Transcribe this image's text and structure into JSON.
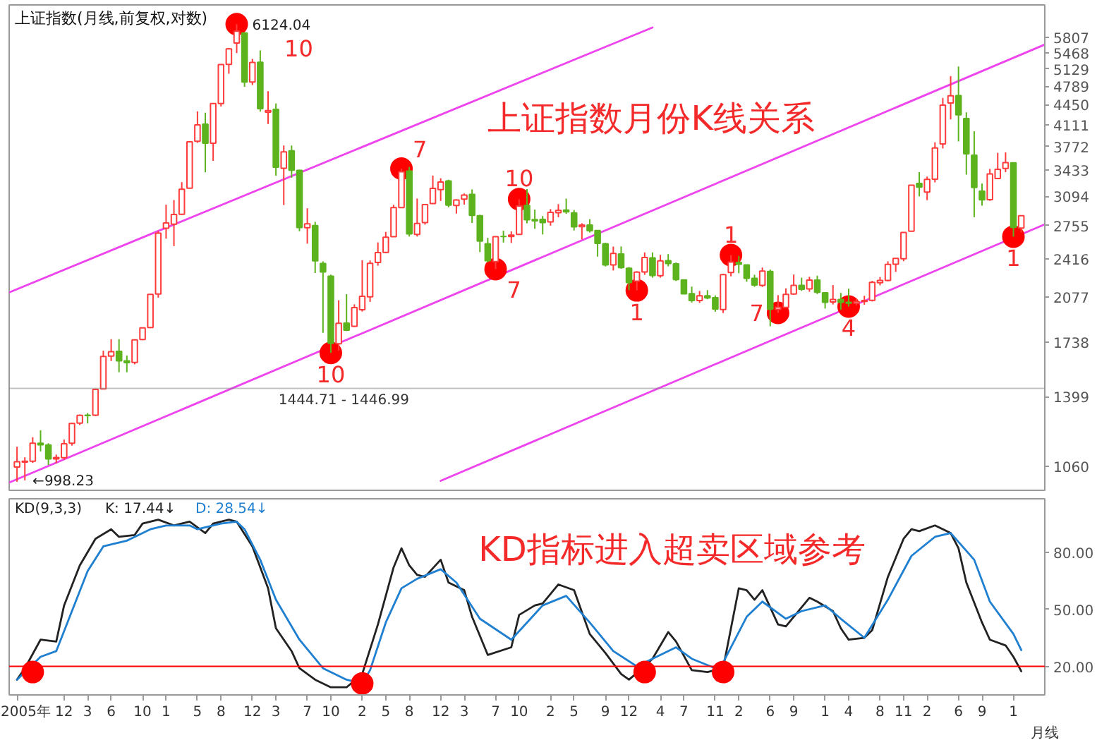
{
  "chart_data": [
    {
      "type": "candlestick",
      "title": "上证指数(月线,前复权,对数)",
      "x": [
        "2005-06",
        "2005-07",
        "2005-08",
        "2005-09",
        "2005-10",
        "2005-11",
        "2005-12",
        "2006-01",
        "2006-02",
        "2006-03",
        "2006-04",
        "2006-05",
        "2006-06",
        "2006-07",
        "2006-08",
        "2006-09",
        "2006-10",
        "2006-11",
        "2006-12",
        "2007-01",
        "2007-02",
        "2007-03",
        "2007-04",
        "2007-05",
        "2007-06",
        "2007-07",
        "2007-08",
        "2007-09",
        "2007-10",
        "2007-11",
        "2007-12",
        "2008-01",
        "2008-02",
        "2008-03",
        "2008-04",
        "2008-05",
        "2008-06",
        "2008-07",
        "2008-08",
        "2008-09",
        "2008-10",
        "2008-11",
        "2008-12",
        "2009-01",
        "2009-02",
        "2009-03",
        "2009-04",
        "2009-05",
        "2009-06",
        "2009-07",
        "2009-08",
        "2009-09",
        "2009-10",
        "2009-11",
        "2009-12",
        "2010-01",
        "2010-02",
        "2010-03",
        "2010-04",
        "2010-05",
        "2010-06",
        "2010-07",
        "2010-08",
        "2010-09",
        "2010-10",
        "2010-11",
        "2010-12",
        "2011-01",
        "2011-02",
        "2011-03",
        "2011-04",
        "2011-05",
        "2011-06",
        "2011-07",
        "2011-08",
        "2011-09",
        "2011-10",
        "2011-11",
        "2011-12",
        "2012-01",
        "2012-02",
        "2012-03",
        "2012-04",
        "2012-05",
        "2012-06",
        "2012-07",
        "2012-08",
        "2012-09",
        "2012-10",
        "2012-11",
        "2012-12",
        "2013-01",
        "2013-02",
        "2013-03",
        "2013-04",
        "2013-05",
        "2013-06",
        "2013-07",
        "2013-08",
        "2013-09",
        "2013-10",
        "2013-11",
        "2013-12",
        "2014-01",
        "2014-02",
        "2014-03",
        "2014-04",
        "2014-05",
        "2014-06",
        "2014-07",
        "2014-08",
        "2014-09",
        "2014-10",
        "2014-11",
        "2014-12",
        "2015-01",
        "2015-02",
        "2015-03",
        "2015-04",
        "2015-05",
        "2015-06",
        "2015-07",
        "2015-08",
        "2015-09",
        "2015-10",
        "2015-11",
        "2015-12",
        "2016-01",
        "2016-02"
      ],
      "ohlc": [
        [
          1058,
          1147,
          998.23,
          1081
        ],
        [
          1079,
          1100,
          1004,
          1083
        ],
        [
          1083,
          1191,
          1076,
          1163
        ],
        [
          1163,
          1224,
          1126,
          1156
        ],
        [
          1155,
          1163,
          1067,
          1093
        ],
        [
          1093,
          1112,
          1074,
          1099
        ],
        [
          1098,
          1180,
          1090,
          1161
        ],
        [
          1163,
          1262,
          1152,
          1258
        ],
        [
          1260,
          1303,
          1250,
          1299
        ],
        [
          1300,
          1311,
          1258,
          1298
        ],
        [
          1300,
          1445,
          1295,
          1440
        ],
        [
          1443,
          1678,
          1440,
          1641
        ],
        [
          1643,
          1757,
          1611,
          1672
        ],
        [
          1674,
          1757,
          1541,
          1612
        ],
        [
          1612,
          1647,
          1541,
          1601
        ],
        [
          1602,
          1752,
          1590,
          1752
        ],
        [
          1754,
          1837,
          1750,
          1837
        ],
        [
          1840,
          2100,
          1835,
          2099
        ],
        [
          2101,
          2698,
          2072,
          2675
        ],
        [
          2728,
          2994,
          2617,
          2786
        ],
        [
          2771,
          3050,
          2541,
          2881
        ],
        [
          2882,
          3274,
          2875,
          3183
        ],
        [
          3196,
          3842,
          3196,
          3841
        ],
        [
          3851,
          4335,
          3827,
          4109
        ],
        [
          4120,
          4312,
          3404,
          3820
        ],
        [
          3820,
          4476,
          3563,
          4471
        ],
        [
          4472,
          5218,
          4420,
          5218
        ],
        [
          5221,
          5576,
          5032,
          5552
        ],
        [
          5684,
          6124.04,
          5462,
          5954
        ],
        [
          5915,
          5916,
          4778,
          4871
        ],
        [
          4868,
          5337,
          4812,
          5262
        ],
        [
          5265,
          5522,
          4330,
          4383
        ],
        [
          4320,
          4696,
          4124,
          4348
        ],
        [
          4368,
          4473,
          3358,
          3473
        ],
        [
          3459,
          3786,
          2990,
          3693
        ],
        [
          3707,
          3786,
          3333,
          3433
        ],
        [
          3430,
          3439,
          2695,
          2736
        ],
        [
          2733,
          2952,
          2566,
          2775
        ],
        [
          2756,
          2798,
          2284,
          2397
        ],
        [
          2372,
          2392,
          1802,
          2293
        ],
        [
          2255,
          2269,
          1664,
          1729
        ],
        [
          1725,
          2050,
          1678,
          1871
        ],
        [
          1873,
          2100,
          1814,
          1821
        ],
        [
          1849,
          2017,
          1844,
          1991
        ],
        [
          1974,
          2402,
          1960,
          2082
        ],
        [
          2078,
          2400,
          2037,
          2373
        ],
        [
          2381,
          2579,
          2351,
          2477
        ],
        [
          2479,
          2688,
          2472,
          2632
        ],
        [
          2638,
          2993,
          2637,
          2959
        ],
        [
          2961,
          3455,
          2961,
          3412
        ],
        [
          3421,
          3478,
          2639,
          2667
        ],
        [
          2661,
          3068,
          2639,
          2779
        ],
        [
          2789,
          3004,
          2767,
          2995
        ],
        [
          3007,
          3361,
          3002,
          3195
        ],
        [
          3179,
          3325,
          3039,
          3277
        ],
        [
          3289,
          3306,
          2963,
          2989
        ],
        [
          2984,
          3059,
          2890,
          3051
        ],
        [
          3060,
          3130,
          2996,
          3110
        ],
        [
          3120,
          3181,
          2785,
          2870
        ],
        [
          2866,
          2876,
          2481,
          2592
        ],
        [
          2564,
          2625,
          2383,
          2398
        ],
        [
          2390,
          2642,
          2319,
          2638
        ],
        [
          2640,
          2701,
          2577,
          2639
        ],
        [
          2640,
          2694,
          2573,
          2655
        ],
        [
          2661,
          3060,
          2661,
          2979
        ],
        [
          2986,
          3186,
          2782,
          2820
        ],
        [
          2822,
          2936,
          2721,
          2808
        ],
        [
          2825,
          2862,
          2661,
          2790
        ],
        [
          2798,
          2942,
          2756,
          2905
        ],
        [
          2900,
          3001,
          2849,
          2928
        ],
        [
          2932,
          3067,
          2888,
          2911
        ],
        [
          2898,
          2932,
          2703,
          2743
        ],
        [
          2744,
          2782,
          2610,
          2762
        ],
        [
          2763,
          2827,
          2682,
          2701
        ],
        [
          2702,
          2702,
          2437,
          2568
        ],
        [
          2564,
          2575,
          2344,
          2359
        ],
        [
          2359,
          2536,
          2307,
          2468
        ],
        [
          2463,
          2537,
          2323,
          2333
        ],
        [
          2327,
          2338,
          2134,
          2199
        ],
        [
          2212,
          2300,
          2132,
          2292
        ],
        [
          2294,
          2478,
          2267,
          2428
        ],
        [
          2426,
          2478,
          2242,
          2262
        ],
        [
          2260,
          2454,
          2242,
          2396
        ],
        [
          2399,
          2461,
          2345,
          2372
        ],
        [
          2369,
          2381,
          2213,
          2225
        ],
        [
          2222,
          2223,
          2101,
          2103
        ],
        [
          2104,
          2164,
          2032,
          2047
        ],
        [
          2047,
          2127,
          2029,
          2086
        ],
        [
          2086,
          2134,
          2058,
          2069
        ],
        [
          2071,
          2090,
          1959,
          1980
        ],
        [
          1976,
          2276,
          1949,
          2269
        ],
        [
          2289,
          2452,
          2254,
          2385
        ],
        [
          2382,
          2444,
          2282,
          2365
        ],
        [
          2359,
          2359,
          2206,
          2236
        ],
        [
          2236,
          2268,
          2162,
          2178
        ],
        [
          2175,
          2334,
          2161,
          2301
        ],
        [
          2298,
          2315,
          1849,
          1979
        ],
        [
          1978,
          2092,
          1950,
          1994
        ],
        [
          1993,
          2149,
          1993,
          2098
        ],
        [
          2101,
          2270,
          2096,
          2175
        ],
        [
          2174,
          2242,
          2128,
          2141
        ],
        [
          2145,
          2250,
          2120,
          2221
        ],
        [
          2220,
          2260,
          2101,
          2116
        ],
        [
          2112,
          2113,
          1984,
          2033
        ],
        [
          2036,
          2177,
          2016,
          2056
        ],
        [
          2057,
          2111,
          1974,
          2033
        ],
        [
          2034,
          2146,
          2000,
          2026
        ],
        [
          2027,
          2062,
          2010,
          2039
        ],
        [
          2040,
          2087,
          2014,
          2048
        ],
        [
          2049,
          2214,
          2040,
          2201
        ],
        [
          2198,
          2248,
          2175,
          2217
        ],
        [
          2218,
          2392,
          2211,
          2364
        ],
        [
          2365,
          2421,
          2294,
          2420
        ],
        [
          2417,
          2683,
          2393,
          2683
        ],
        [
          2695,
          3239,
          2691,
          3234
        ],
        [
          3258,
          3406,
          3095,
          3210
        ],
        [
          3148,
          3347,
          3049,
          3310
        ],
        [
          3313,
          3835,
          3271,
          3748
        ],
        [
          3811,
          4572,
          3742,
          4442
        ],
        [
          4480,
          4986,
          4199,
          4612
        ],
        [
          4616,
          5178,
          3848,
          4277
        ],
        [
          4214,
          4318,
          3373,
          3664
        ],
        [
          3643,
          4006,
          2850,
          3206
        ],
        [
          3158,
          3256,
          2983,
          3053
        ],
        [
          3055,
          3450,
          3040,
          3383
        ],
        [
          3322,
          3678,
          3316,
          3445
        ],
        [
          3457,
          3684,
          3406,
          3539
        ],
        [
          3536,
          3539,
          2638,
          2738
        ],
        [
          2730,
          2870,
          2683,
          2867
        ]
      ],
      "colors": [
        "#ff3c3c",
        "#ff3c3c",
        "#ff3c3c",
        "#5cb31e",
        "#5cb31e",
        "#ff3c3c",
        "#ff3c3c",
        "#ff3c3c",
        "#ff3c3c",
        "#5cb31e",
        "#ff3c3c",
        "#ff3c3c",
        "#ff3c3c",
        "#5cb31e",
        "#5cb31e",
        "#ff3c3c",
        "#ff3c3c",
        "#ff3c3c",
        "#ff3c3c",
        "#ff3c3c",
        "#ff3c3c",
        "#ff3c3c",
        "#ff3c3c",
        "#ff3c3c",
        "#5cb31e",
        "#ff3c3c",
        "#ff3c3c",
        "#ff3c3c",
        "#ff3c3c",
        "#5cb31e",
        "#ff3c3c",
        "#5cb31e",
        "#ff3c3c",
        "#5cb31e",
        "#ff3c3c",
        "#5cb31e",
        "#5cb31e",
        "#ff3c3c",
        "#5cb31e",
        "#5cb31e",
        "#5cb31e",
        "#ff3c3c",
        "#5cb31e",
        "#ff3c3c",
        "#ff3c3c",
        "#ff3c3c",
        "#ff3c3c",
        "#ff3c3c",
        "#ff3c3c",
        "#ff3c3c",
        "#5cb31e",
        "#ff3c3c",
        "#ff3c3c",
        "#ff3c3c",
        "#ff3c3c",
        "#5cb31e",
        "#ff3c3c",
        "#ff3c3c",
        "#5cb31e",
        "#5cb31e",
        "#5cb31e",
        "#ff3c3c",
        "#5cb31e",
        "#ff3c3c",
        "#ff3c3c",
        "#5cb31e",
        "#5cb31e",
        "#5cb31e",
        "#ff3c3c",
        "#ff3c3c",
        "#5cb31e",
        "#5cb31e",
        "#ff3c3c",
        "#5cb31e",
        "#5cb31e",
        "#5cb31e",
        "#ff3c3c",
        "#5cb31e",
        "#5cb31e",
        "#ff3c3c",
        "#ff3c3c",
        "#5cb31e",
        "#ff3c3c",
        "#5cb31e",
        "#5cb31e",
        "#5cb31e",
        "#5cb31e",
        "#ff3c3c",
        "#5cb31e",
        "#5cb31e",
        "#ff3c3c",
        "#ff3c3c",
        "#5cb31e",
        "#5cb31e",
        "#5cb31e",
        "#ff3c3c",
        "#5cb31e",
        "#ff3c3c",
        "#ff3c3c",
        "#ff3c3c",
        "#5cb31e",
        "#ff3c3c",
        "#5cb31e",
        "#5cb31e",
        "#ff3c3c",
        "#5cb31e",
        "#5cb31e",
        "#ff3c3c",
        "#ff3c3c",
        "#ff3c3c",
        "#ff3c3c",
        "#ff3c3c",
        "#ff3c3c",
        "#ff3c3c",
        "#ff3c3c",
        "#5cb31e",
        "#ff3c3c",
        "#ff3c3c",
        "#ff3c3c",
        "#ff3c3c",
        "#5cb31e",
        "#5cb31e",
        "#5cb31e",
        "#5cb31e",
        "#ff3c3c",
        "#ff3c3c",
        "#ff3c3c",
        "#5cb31e",
        "#ff3c3c"
      ],
      "series": [
        {
          "type": "line",
          "color": "#ee44ee",
          "x": [
            "2005-05",
            "2012-03"
          ],
          "values": [
            2115,
            6045
          ]
        },
        {
          "type": "line",
          "color": "#ee44ee",
          "x": [
            "2005-05",
            "2016-05"
          ],
          "values": [
            995,
            5650
          ]
        },
        {
          "type": "line",
          "color": "#ee44ee",
          "x": [
            "2009-12",
            "2016-05"
          ],
          "values": [
            1002,
            2770
          ]
        },
        {
          "type": "scatter",
          "color": "#ff0000",
          "marker": "circle",
          "x": [
            "2007-10",
            "2008-10",
            "2009-07",
            "2010-07",
            "2010-10",
            "2012-01",
            "2013-01",
            "2013-07",
            "2014-04",
            "2016-01"
          ],
          "values": [
            6124.04,
            1664,
            3455,
            2319,
            3060,
            2132,
            2452,
            1950,
            2000,
            2638
          ]
        }
      ],
      "xlim": [
        "2005-05",
        "2016-05"
      ],
      "ylim": [
        965,
        6610
      ],
      "log": "y",
      "yticks": [
        1060,
        1399,
        1738,
        2077,
        2416,
        2755,
        3094,
        3433,
        3772,
        4111,
        4450,
        4789,
        5129,
        5468,
        5807
      ],
      "tick_labels": "y",
      "bands": [
        {
          "axis": "y",
          "from": 1444.71,
          "to": 1446.99,
          "label": "1444.71 - 1446.99",
          "color": "#808080"
        }
      ],
      "annotations": [
        "上证指数月份K线关系",
        {
          "text": "6124.04",
          "x": "2007-10",
          "y": 6124.04
        },
        {
          "text": "10",
          "x": "2007-10",
          "y": 6124.04
        },
        {
          "text": "←998.23",
          "x": "2005-06",
          "y": 998.23
        },
        {
          "text": "10",
          "x": "2008-10",
          "y": 1664
        },
        {
          "text": "7",
          "x": "2009-07",
          "y": 3455
        },
        {
          "text": "7",
          "x": "2010-07",
          "y": 2319
        },
        {
          "text": "10",
          "x": "2010-10",
          "y": 3060
        },
        {
          "text": "1",
          "x": "2012-01",
          "y": 2132
        },
        {
          "text": "1",
          "x": "2013-01",
          "y": 2452
        },
        {
          "text": "7",
          "x": "2013-07",
          "y": 1950
        },
        {
          "text": "4",
          "x": "2014-04",
          "y": 2000
        },
        {
          "text": "1",
          "x": "2016-01",
          "y": 2638
        }
      ]
    },
    {
      "type": "line",
      "legend": "top left",
      "legend_title": "KD(9,3,3)",
      "xlabel": "月线",
      "series": [
        {
          "name": "K: 17.44↓",
          "color": "#222222",
          "x": [
            "2005-06",
            "2005-07",
            "2005-09",
            "2005-11",
            "2005-12",
            "2006-02",
            "2006-04",
            "2006-06",
            "2006-07",
            "2006-09",
            "2006-10",
            "2006-12",
            "2007-02",
            "2007-04",
            "2007-06",
            "2007-07",
            "2007-09",
            "2007-10",
            "2007-12",
            "2008-02",
            "2008-03",
            "2008-05",
            "2008-06",
            "2008-08",
            "2008-10",
            "2008-12",
            "2009-02",
            "2009-04",
            "2009-06",
            "2009-07",
            "2009-08",
            "2009-09",
            "2009-10",
            "2009-12",
            "2010-01",
            "2010-03",
            "2010-04",
            "2010-06",
            "2010-09",
            "2010-10",
            "2010-12",
            "2011-01",
            "2011-03",
            "2011-05",
            "2011-07",
            "2011-09",
            "2011-11",
            "2011-12",
            "2012-02",
            "2012-03",
            "2012-05",
            "2012-06",
            "2012-08",
            "2012-10",
            "2012-12",
            "2013-02",
            "2013-03",
            "2013-04",
            "2013-05",
            "2013-07",
            "2013-08",
            "2013-11",
            "2013-12",
            "2014-02",
            "2014-03",
            "2014-04",
            "2014-06",
            "2014-07",
            "2014-09",
            "2014-11",
            "2014-12",
            "2015-01",
            "2015-03",
            "2015-05",
            "2015-06",
            "2015-07",
            "2015-09",
            "2015-10",
            "2015-12",
            "2016-01",
            "2016-02"
          ],
          "values": [
            13,
            19,
            34,
            33,
            52,
            73,
            87,
            92,
            88,
            89,
            95,
            97,
            94,
            96,
            90,
            95,
            97,
            96,
            83,
            61,
            40,
            28,
            19,
            13,
            9,
            9,
            16,
            42,
            72,
            82,
            73,
            68,
            67,
            76,
            64,
            60,
            46,
            26,
            30,
            47,
            52,
            53,
            63,
            60,
            37,
            27,
            16,
            13,
            20,
            24,
            38,
            33,
            18,
            17,
            19,
            61,
            60,
            55,
            60,
            42,
            41,
            56,
            54,
            49,
            40,
            34,
            35,
            39,
            67,
            87,
            92,
            91,
            94,
            90,
            82,
            64,
            43,
            34,
            31,
            25,
            17.44
          ]
        },
        {
          "name": "D: 28.54↓",
          "color": "#1f7fd0",
          "x": [
            "2005-06",
            "2005-09",
            "2005-11",
            "2006-01",
            "2006-03",
            "2006-05",
            "2006-08",
            "2006-11",
            "2007-01",
            "2007-04",
            "2007-05",
            "2007-08",
            "2007-10",
            "2007-11",
            "2008-01",
            "2008-03",
            "2008-06",
            "2008-09",
            "2008-12",
            "2009-02",
            "2009-03",
            "2009-05",
            "2009-07",
            "2009-09",
            "2009-12",
            "2010-02",
            "2010-05",
            "2010-09",
            "2010-11",
            "2011-01",
            "2011-04",
            "2011-07",
            "2011-10",
            "2012-01",
            "2012-03",
            "2012-06",
            "2012-08",
            "2012-11",
            "2012-12",
            "2013-03",
            "2013-05",
            "2013-08",
            "2013-10",
            "2014-01",
            "2014-03",
            "2014-06",
            "2014-09",
            "2014-12",
            "2015-03",
            "2015-05",
            "2015-08",
            "2015-10",
            "2016-01",
            "2016-02"
          ],
          "values": [
            13,
            25,
            28,
            49,
            70,
            83,
            86,
            92,
            94,
            94,
            92,
            95,
            96,
            92,
            76,
            55,
            34,
            19,
            13,
            11,
            18,
            43,
            61,
            66,
            71,
            64,
            45,
            34,
            43,
            52,
            57,
            43,
            28,
            20,
            24,
            30,
            24,
            19,
            22,
            46,
            54,
            45,
            49,
            52,
            45,
            35,
            55,
            78,
            88,
            90,
            76,
            54,
            37,
            28.54
          ]
        },
        {
          "type": "scatter",
          "color": "#ff0000",
          "marker": "circle",
          "x": [
            "2005-08",
            "2009-02",
            "2012-02",
            "2012-12"
          ],
          "values": [
            17,
            11,
            17,
            17
          ]
        }
      ],
      "xlim": [
        "2005-05",
        "2016-05"
      ],
      "xticks": [
        {
          "value": "2005-06",
          "label": "2005年"
        },
        {
          "value": "2005-12",
          "label": "12"
        },
        {
          "value": "2006-03",
          "label": "3"
        },
        {
          "value": "2006-06",
          "label": "6"
        },
        {
          "value": "2006-10",
          "label": "10"
        },
        {
          "value": "2007-01",
          "label": "1"
        },
        {
          "value": "2007-05",
          "label": "5"
        },
        {
          "value": "2007-08",
          "label": "8"
        },
        {
          "value": "2007-12",
          "label": "12"
        },
        {
          "value": "2008-03",
          "label": "3"
        },
        {
          "value": "2008-07",
          "label": "7"
        },
        {
          "value": "2008-10",
          "label": "10"
        },
        {
          "value": "2009-02",
          "label": "2"
        },
        {
          "value": "2009-05",
          "label": "5"
        },
        {
          "value": "2009-08",
          "label": "8"
        },
        {
          "value": "2009-12",
          "label": "12"
        },
        {
          "value": "2010-03",
          "label": "3"
        },
        {
          "value": "2010-07",
          "label": "7"
        },
        {
          "value": "2010-10",
          "label": "10"
        },
        {
          "value": "2011-02",
          "label": "2"
        },
        {
          "value": "2011-05",
          "label": "5"
        },
        {
          "value": "2011-09",
          "label": "9"
        },
        {
          "value": "2011-12",
          "label": "12"
        },
        {
          "value": "2012-04",
          "label": "4"
        },
        {
          "value": "2012-07",
          "label": "7"
        },
        {
          "value": "2012-11",
          "label": "11"
        },
        {
          "value": "2013-02",
          "label": "2"
        },
        {
          "value": "2013-06",
          "label": "6"
        },
        {
          "value": "2013-09",
          "label": "9"
        },
        {
          "value": "2014-01",
          "label": "1"
        },
        {
          "value": "2014-04",
          "label": "4"
        },
        {
          "value": "2014-08",
          "label": "8"
        },
        {
          "value": "2014-11",
          "label": "11"
        },
        {
          "value": "2015-02",
          "label": "2"
        },
        {
          "value": "2015-06",
          "label": "6"
        },
        {
          "value": "2015-09",
          "label": "9"
        },
        {
          "value": "2016-01",
          "label": "1"
        }
      ],
      "ylim": [
        5,
        108
      ],
      "yticks": [
        {
          "value": 20,
          "label": "20.00"
        },
        {
          "value": 50,
          "label": "50.00"
        },
        {
          "value": 80,
          "label": "80.00"
        }
      ],
      "ref_lines": [
        {
          "axis": "y",
          "value": 20,
          "color": "#ff0000"
        }
      ],
      "annotations": [
        "KD指标进入超卖区域参考"
      ]
    }
  ]
}
